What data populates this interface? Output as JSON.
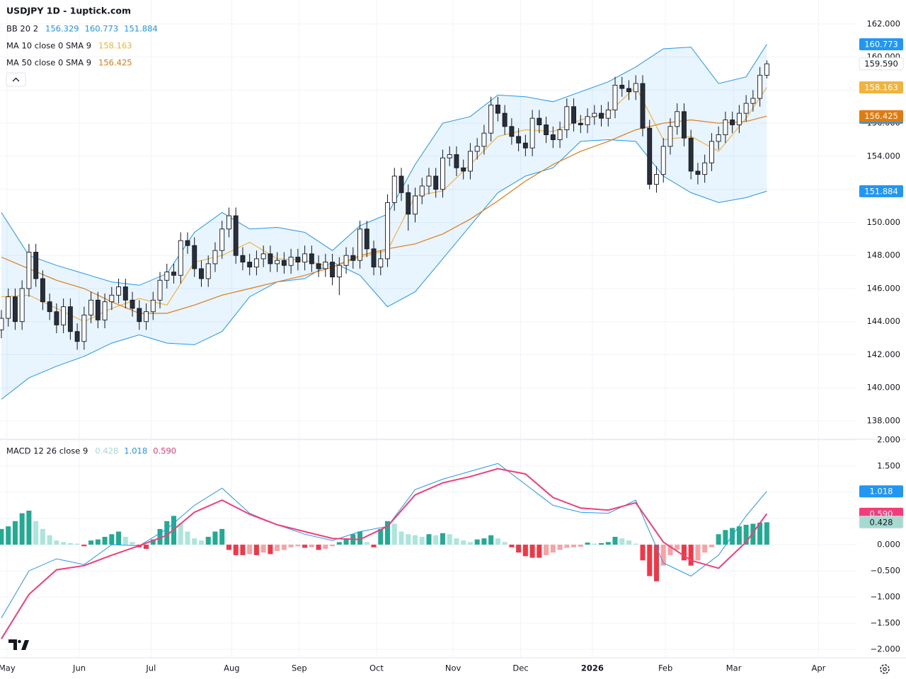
{
  "header": {
    "title": "USDJPY 1D - 1uptick.com"
  },
  "chart_data": [
    {
      "type": "candlestick",
      "xlim": [
        -0.2,
        124
      ],
      "xticks": [
        {
          "value": 0.8,
          "label": "May"
        },
        {
          "value": 11.3,
          "label": "Jun"
        },
        {
          "value": 21.7,
          "label": "Jul"
        },
        {
          "value": 33.4,
          "label": "Aug"
        },
        {
          "value": 43.2,
          "label": "Sep"
        },
        {
          "value": 54.4,
          "label": "Oct"
        },
        {
          "value": 65.5,
          "label": "Nov"
        },
        {
          "value": 75.3,
          "label": "Dec"
        },
        {
          "value": 85.7,
          "label": "2026",
          "bold": true
        },
        {
          "value": 96.3,
          "label": "Feb"
        },
        {
          "value": 106.2,
          "label": "Mar"
        },
        {
          "value": 118.5,
          "label": "Apr"
        }
      ],
      "ylim": [
        136.93,
        163.45
      ],
      "yticks": [
        {
          "value": 138,
          "label": "138.000"
        },
        {
          "value": 140,
          "label": "140.000"
        },
        {
          "value": 142,
          "label": "142.000"
        },
        {
          "value": 144,
          "label": "144.000"
        },
        {
          "value": 146,
          "label": "146.000"
        },
        {
          "value": 148,
          "label": "148.000"
        },
        {
          "value": 150,
          "label": "150.000"
        },
        {
          "value": 152,
          "label": "152.000"
        },
        {
          "value": 154,
          "label": "154.000"
        },
        {
          "value": 156,
          "label": "156.000"
        },
        {
          "value": 158,
          "label": "158.000"
        },
        {
          "value": 160,
          "label": "160.000"
        },
        {
          "value": 162,
          "label": "162.000"
        }
      ],
      "grid": true,
      "colors": {
        "up": "#ffffff",
        "down": "#2a2e39",
        "border": "#131722",
        "wick": "#131722"
      },
      "open": [
        143.5,
        144.2,
        145.5,
        144.0,
        146.0,
        148.2,
        146.6,
        145.2,
        144.6,
        143.8,
        144.9,
        143.4,
        142.8,
        144.4,
        145.3,
        144.1,
        145.2,
        145.6,
        146.1,
        145.3,
        144.8,
        144.0,
        144.6,
        145.3,
        146.5,
        147.0,
        146.8,
        148.9,
        148.6,
        147.2,
        146.6,
        147.5,
        148.3,
        149.6,
        150.4,
        148.0,
        147.6,
        147.3,
        147.8,
        148.1,
        147.5,
        147.7,
        147.4,
        147.9,
        147.6,
        148.1,
        147.5,
        147.2,
        147.6,
        146.7,
        147.4,
        148.0,
        147.7,
        149.6,
        148.4,
        147.3,
        147.8,
        151.2,
        152.8,
        151.8,
        150.5,
        151.6,
        152.2,
        152.8,
        152.0,
        153.9,
        154.1,
        153.3,
        153.1,
        154.3,
        154.6,
        155.4,
        157.1,
        156.6,
        155.8,
        155.2,
        154.8,
        154.5,
        156.3,
        155.9,
        155.3,
        155.0,
        155.6,
        157.0,
        156.0,
        155.9,
        156.4,
        156.6,
        156.3,
        156.8,
        158.3,
        158.1,
        157.9,
        158.4,
        155.7,
        152.3,
        152.9,
        154.6,
        155.8,
        156.7,
        155.1,
        153.1,
        152.9,
        153.6,
        154.9,
        155.3,
        156.2,
        155.9,
        156.6,
        157.2,
        157.5,
        158.9
      ],
      "high": [
        144.7,
        146.0,
        146.0,
        146.5,
        148.7,
        148.7,
        147.1,
        145.7,
        145.1,
        145.4,
        145.4,
        143.9,
        144.9,
        145.8,
        145.8,
        145.7,
        146.1,
        146.6,
        146.6,
        145.8,
        145.3,
        145.1,
        145.8,
        147.0,
        147.5,
        147.5,
        149.4,
        149.4,
        149.1,
        147.7,
        148.0,
        148.8,
        150.1,
        150.9,
        150.9,
        148.5,
        148.1,
        148.3,
        148.6,
        148.6,
        148.2,
        148.2,
        148.4,
        148.4,
        148.6,
        148.6,
        148.0,
        148.1,
        148.1,
        147.9,
        148.5,
        148.5,
        150.1,
        150.1,
        148.9,
        148.3,
        151.7,
        153.3,
        153.3,
        152.3,
        152.1,
        152.7,
        153.3,
        153.3,
        154.4,
        154.6,
        154.6,
        153.8,
        154.8,
        155.1,
        155.9,
        157.6,
        157.6,
        157.1,
        156.3,
        155.7,
        155.3,
        156.8,
        156.8,
        156.4,
        155.8,
        156.1,
        157.5,
        157.5,
        156.5,
        156.9,
        157.1,
        157.1,
        157.3,
        158.8,
        158.8,
        158.6,
        158.9,
        158.9,
        156.2,
        153.4,
        155.1,
        156.3,
        157.2,
        157.2,
        155.6,
        153.6,
        154.1,
        155.4,
        155.8,
        156.7,
        156.7,
        157.1,
        157.7,
        158.0,
        159.4,
        159.8
      ],
      "low": [
        143.0,
        143.7,
        143.5,
        143.5,
        145.5,
        146.1,
        144.7,
        144.1,
        143.3,
        143.3,
        142.9,
        142.3,
        142.3,
        143.9,
        143.6,
        143.6,
        144.7,
        145.1,
        144.8,
        144.3,
        143.5,
        143.5,
        144.1,
        144.8,
        146.0,
        146.3,
        146.3,
        148.1,
        146.7,
        146.1,
        146.1,
        147.0,
        147.8,
        149.1,
        147.5,
        147.1,
        146.8,
        146.8,
        147.3,
        147.0,
        147.0,
        146.9,
        146.9,
        147.1,
        147.1,
        147.0,
        146.7,
        146.7,
        146.2,
        145.6,
        146.9,
        147.2,
        147.2,
        147.9,
        146.8,
        146.8,
        147.3,
        150.7,
        151.3,
        149.5,
        150.0,
        151.1,
        151.7,
        151.5,
        151.5,
        153.4,
        152.8,
        152.6,
        152.6,
        153.8,
        154.1,
        154.9,
        156.1,
        155.3,
        154.7,
        154.3,
        154.0,
        154.0,
        155.4,
        154.8,
        154.5,
        154.5,
        155.1,
        155.5,
        155.4,
        155.4,
        155.9,
        155.8,
        155.8,
        156.3,
        157.6,
        157.4,
        157.4,
        155.2,
        152.0,
        151.8,
        152.4,
        154.1,
        155.3,
        154.6,
        152.6,
        152.3,
        152.4,
        153.1,
        154.4,
        154.8,
        155.4,
        155.4,
        156.1,
        156.7,
        157.0,
        158.7
      ],
      "close": [
        144.2,
        145.5,
        144.0,
        146.0,
        148.2,
        146.6,
        145.2,
        144.6,
        143.8,
        144.9,
        143.4,
        142.8,
        144.4,
        145.3,
        144.1,
        145.2,
        145.6,
        146.1,
        145.3,
        144.8,
        144.0,
        144.6,
        145.3,
        146.5,
        147.0,
        146.8,
        148.9,
        148.6,
        147.2,
        146.6,
        147.5,
        148.3,
        149.6,
        150.4,
        148.0,
        147.6,
        147.3,
        147.8,
        148.1,
        147.5,
        147.7,
        147.4,
        147.9,
        147.6,
        148.1,
        147.5,
        147.2,
        147.6,
        146.7,
        147.4,
        148.0,
        147.7,
        149.6,
        148.4,
        147.3,
        147.8,
        151.2,
        152.8,
        151.8,
        150.5,
        151.6,
        152.2,
        152.8,
        152.0,
        153.9,
        154.1,
        153.3,
        153.1,
        154.3,
        154.6,
        155.4,
        157.1,
        156.6,
        155.8,
        155.2,
        154.8,
        154.5,
        156.3,
        155.9,
        155.3,
        155.0,
        155.6,
        157.0,
        156.0,
        155.9,
        156.4,
        156.6,
        156.3,
        156.8,
        158.3,
        158.1,
        157.9,
        158.4,
        155.7,
        152.3,
        152.9,
        154.6,
        155.8,
        156.7,
        155.1,
        153.1,
        152.9,
        153.6,
        154.9,
        155.3,
        156.2,
        155.9,
        156.6,
        157.2,
        157.5,
        158.9,
        159.59
      ],
      "last": {
        "value": 159.59,
        "label": "159.590",
        "color": "#ffffff",
        "text_color": "#131722"
      },
      "bb": {
        "label": "BB 20 2",
        "color": "#2196f3",
        "fill": "rgba(33,150,243,0.1)",
        "x": [
          0,
          4,
          8,
          12,
          16,
          20,
          24,
          28,
          32,
          36,
          40,
          44,
          48,
          52,
          56,
          60,
          64,
          68,
          72,
          76,
          80,
          84,
          88,
          92,
          96,
          100,
          104,
          108,
          111
        ],
        "upper": [
          150.6,
          148.0,
          147.4,
          146.9,
          146.4,
          146.2,
          146.9,
          149.4,
          150.6,
          149.6,
          149.7,
          149.4,
          148.3,
          149.8,
          150.5,
          153.5,
          156.0,
          156.4,
          157.7,
          157.6,
          157.3,
          157.9,
          158.5,
          159.4,
          160.5,
          160.6,
          158.4,
          158.8,
          160.773
        ],
        "lower": [
          139.3,
          140.6,
          141.3,
          141.9,
          142.7,
          143.2,
          142.7,
          142.6,
          143.4,
          145.5,
          146.4,
          146.6,
          147.6,
          146.8,
          144.9,
          145.8,
          147.8,
          149.8,
          151.8,
          152.8,
          153.3,
          154.9,
          155.0,
          154.9,
          152.8,
          151.8,
          151.2,
          151.5,
          151.884
        ],
        "readouts": [
          {
            "value": 156.329,
            "label": "156.329",
            "color": "#2196f3"
          },
          {
            "value": 160.773,
            "label": "160.773",
            "color": "#2196f3"
          },
          {
            "value": 151.884,
            "label": "151.884",
            "color": "#2196f3"
          }
        ]
      },
      "ma": [
        {
          "label": "MA 10 close 0 SMA 9",
          "color": "#f2b33d",
          "x": [
            0,
            4,
            8,
            12,
            16,
            20,
            24,
            28,
            32,
            36,
            40,
            44,
            48,
            52,
            56,
            60,
            64,
            68,
            72,
            76,
            80,
            84,
            88,
            92,
            96,
            100,
            104,
            108,
            111
          ],
          "values": [
            145.5,
            145.6,
            144.8,
            144.0,
            144.8,
            145.4,
            145.0,
            147.6,
            148.0,
            148.8,
            147.8,
            147.7,
            147.3,
            147.9,
            148.3,
            151.6,
            151.9,
            153.5,
            155.2,
            155.6,
            155.5,
            156.2,
            156.6,
            158.2,
            155.0,
            155.2,
            154.3,
            156.3,
            158.163
          ],
          "readout": {
            "value": 158.163,
            "label": "158.163",
            "color": "#f2b33d"
          }
        },
        {
          "label": "MA 50 close 0 SMA 9",
          "color": "#e07b12",
          "x": [
            0,
            4,
            8,
            12,
            16,
            20,
            24,
            28,
            32,
            36,
            40,
            44,
            48,
            52,
            56,
            60,
            64,
            68,
            72,
            76,
            80,
            84,
            88,
            92,
            96,
            100,
            104,
            108,
            111
          ],
          "values": [
            147.9,
            147.2,
            146.5,
            146.0,
            145.2,
            144.5,
            144.5,
            145.0,
            145.6,
            146.0,
            146.4,
            146.8,
            147.3,
            148.0,
            148.4,
            148.7,
            149.3,
            150.2,
            151.3,
            152.5,
            153.5,
            154.3,
            154.9,
            155.6,
            156.0,
            156.2,
            156.0,
            156.1,
            156.425
          ],
          "readout": {
            "value": 156.425,
            "label": "156.425",
            "color": "#e07b12"
          }
        }
      ]
    },
    {
      "type": "macd",
      "label": "MACD 12 26 close 9",
      "ylim": [
        -2.16,
        2.0
      ],
      "yticks": [
        {
          "value": -2,
          "label": "−2.000"
        },
        {
          "value": -1.5,
          "label": "−1.500"
        },
        {
          "value": -1,
          "label": "−1.000"
        },
        {
          "value": -0.5,
          "label": "−0.500"
        },
        {
          "value": 0,
          "label": "0.000"
        },
        {
          "value": 0.5,
          "label": "0.500"
        },
        {
          "value": 1,
          "label": "1.000"
        },
        {
          "value": 1.5,
          "label": "1.500"
        },
        {
          "value": 2,
          "label": "2.000"
        }
      ],
      "grid": true,
      "histogram": {
        "colors": {
          "up_rising": "#22ab94",
          "up_falling": "#ace5dc",
          "down_falling": "#f23645",
          "down_rising": "#faa1a4"
        },
        "values": [
          0.3,
          0.35,
          0.45,
          0.6,
          0.65,
          0.45,
          0.3,
          0.18,
          0.08,
          0.05,
          0.03,
          0.02,
          -0.03,
          0.08,
          0.1,
          0.15,
          0.2,
          0.25,
          0.15,
          0.05,
          -0.05,
          -0.08,
          0.1,
          0.3,
          0.45,
          0.55,
          0.4,
          0.25,
          0.12,
          0.08,
          0.15,
          0.25,
          0.3,
          -0.1,
          -0.2,
          -0.2,
          -0.18,
          -0.2,
          -0.15,
          -0.18,
          -0.12,
          -0.1,
          -0.05,
          -0.03,
          -0.06,
          -0.05,
          -0.1,
          -0.08,
          -0.03,
          0.05,
          0.12,
          0.2,
          0.25,
          0.05,
          -0.05,
          0.3,
          0.45,
          0.4,
          0.25,
          0.2,
          0.18,
          0.15,
          0.2,
          0.18,
          0.22,
          0.2,
          0.12,
          0.08,
          0.05,
          0.1,
          0.12,
          0.18,
          0.12,
          0.05,
          -0.05,
          -0.15,
          -0.22,
          -0.25,
          -0.25,
          -0.2,
          -0.15,
          -0.1,
          -0.06,
          -0.05,
          -0.04,
          0.04,
          0.02,
          0.03,
          0.05,
          0.15,
          0.12,
          0.08,
          0.02,
          -0.3,
          -0.6,
          -0.7,
          -0.4,
          -0.2,
          -0.1,
          -0.3,
          -0.4,
          -0.3,
          -0.15,
          -0.05,
          0.2,
          0.28,
          0.32,
          0.35,
          0.38,
          0.4,
          0.42,
          0.428
        ],
        "readout": {
          "value": 0.428,
          "label": "0.428",
          "color": "#a6d9d0",
          "text_color": "#131722"
        }
      },
      "macd": {
        "color": "#2196f3",
        "x": [
          0,
          4,
          8,
          12,
          16,
          20,
          24,
          28,
          32,
          36,
          40,
          44,
          48,
          52,
          56,
          60,
          64,
          68,
          72,
          76,
          80,
          84,
          88,
          92,
          96,
          100,
          104,
          108,
          111
        ],
        "values": [
          -1.4,
          -0.5,
          -0.27,
          -0.38,
          0,
          -0.02,
          0.3,
          0.75,
          1.08,
          0.6,
          0.38,
          0.2,
          0.08,
          0.25,
          0.35,
          1.05,
          1.25,
          1.4,
          1.55,
          1.15,
          0.75,
          0.62,
          0.6,
          0.85,
          -0.35,
          -0.6,
          -0.2,
          0.55,
          1.018
        ],
        "readout": {
          "value": 1.018,
          "label": "1.018",
          "color": "#2196f3"
        }
      },
      "signal": {
        "color": "#f23d7a",
        "x": [
          0,
          4,
          8,
          12,
          16,
          20,
          24,
          28,
          32,
          36,
          40,
          44,
          48,
          52,
          56,
          60,
          64,
          68,
          72,
          76,
          80,
          84,
          88,
          92,
          96,
          100,
          104,
          108,
          111
        ],
        "values": [
          -1.8,
          -0.95,
          -0.48,
          -0.4,
          -0.2,
          -0.02,
          0.18,
          0.62,
          0.85,
          0.58,
          0.38,
          0.25,
          0.12,
          0.1,
          0.35,
          0.95,
          1.18,
          1.3,
          1.45,
          1.35,
          0.9,
          0.7,
          0.66,
          0.8,
          0.05,
          -0.3,
          -0.45,
          0.05,
          0.59
        ],
        "readout": {
          "value": 0.59,
          "label": "0.590",
          "color": "#f23d7a"
        }
      }
    }
  ]
}
